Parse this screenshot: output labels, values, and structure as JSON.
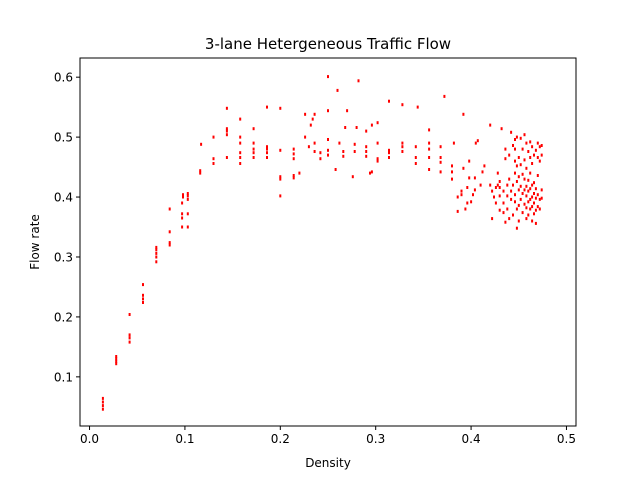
{
  "chart_data": {
    "type": "scatter",
    "title": "3-lane Hetergeneous Traffic Flow",
    "xlabel": "Density",
    "ylabel": "Flow rate",
    "xlim": [
      -0.01,
      0.51
    ],
    "ylim": [
      0.018,
      0.632
    ],
    "xticks": [
      0.0,
      0.1,
      0.2,
      0.3,
      0.4,
      0.5
    ],
    "xtick_labels": [
      "0.0",
      "0.1",
      "0.2",
      "0.3",
      "0.4",
      "0.5"
    ],
    "yticks": [
      0.1,
      0.2,
      0.3,
      0.4,
      0.5,
      0.6
    ],
    "ytick_labels": [
      "0.1",
      "0.2",
      "0.3",
      "0.4",
      "0.5",
      "0.6"
    ],
    "grid": false,
    "marker_color": "#ff0000",
    "series": [
      {
        "points": [
          [
            0.014,
            0.046
          ],
          [
            0.014,
            0.052
          ],
          [
            0.014,
            0.058
          ],
          [
            0.014,
            0.064
          ],
          [
            0.028,
            0.122
          ],
          [
            0.028,
            0.126
          ],
          [
            0.028,
            0.13
          ],
          [
            0.028,
            0.134
          ],
          [
            0.042,
            0.158
          ],
          [
            0.042,
            0.165
          ],
          [
            0.042,
            0.17
          ],
          [
            0.042,
            0.204
          ],
          [
            0.056,
            0.224
          ],
          [
            0.056,
            0.23
          ],
          [
            0.056,
            0.236
          ],
          [
            0.056,
            0.254
          ],
          [
            0.07,
            0.292
          ],
          [
            0.07,
            0.3
          ],
          [
            0.07,
            0.306
          ],
          [
            0.07,
            0.312
          ],
          [
            0.07,
            0.316
          ],
          [
            0.084,
            0.32
          ],
          [
            0.084,
            0.324
          ],
          [
            0.084,
            0.342
          ],
          [
            0.084,
            0.38
          ],
          [
            0.097,
            0.35
          ],
          [
            0.097,
            0.365
          ],
          [
            0.097,
            0.372
          ],
          [
            0.097,
            0.39
          ],
          [
            0.098,
            0.4
          ],
          [
            0.098,
            0.404
          ],
          [
            0.103,
            0.35
          ],
          [
            0.103,
            0.372
          ],
          [
            0.103,
            0.396
          ],
          [
            0.103,
            0.402
          ],
          [
            0.103,
            0.406
          ],
          [
            0.116,
            0.44
          ],
          [
            0.116,
            0.444
          ],
          [
            0.117,
            0.488
          ],
          [
            0.13,
            0.456
          ],
          [
            0.13,
            0.464
          ],
          [
            0.13,
            0.5
          ],
          [
            0.144,
            0.466
          ],
          [
            0.144,
            0.504
          ],
          [
            0.144,
            0.51
          ],
          [
            0.144,
            0.514
          ],
          [
            0.144,
            0.548
          ],
          [
            0.158,
            0.456
          ],
          [
            0.158,
            0.466
          ],
          [
            0.158,
            0.474
          ],
          [
            0.158,
            0.49
          ],
          [
            0.158,
            0.5
          ],
          [
            0.158,
            0.53
          ],
          [
            0.172,
            0.466
          ],
          [
            0.172,
            0.474
          ],
          [
            0.172,
            0.48
          ],
          [
            0.172,
            0.49
          ],
          [
            0.172,
            0.514
          ],
          [
            0.186,
            0.466
          ],
          [
            0.186,
            0.474
          ],
          [
            0.186,
            0.48
          ],
          [
            0.186,
            0.484
          ],
          [
            0.186,
            0.55
          ],
          [
            0.2,
            0.402
          ],
          [
            0.2,
            0.43
          ],
          [
            0.2,
            0.434
          ],
          [
            0.2,
            0.478
          ],
          [
            0.2,
            0.548
          ],
          [
            0.214,
            0.432
          ],
          [
            0.214,
            0.436
          ],
          [
            0.214,
            0.464
          ],
          [
            0.214,
            0.472
          ],
          [
            0.214,
            0.48
          ],
          [
            0.22,
            0.44
          ],
          [
            0.226,
            0.5
          ],
          [
            0.226,
            0.538
          ],
          [
            0.23,
            0.484
          ],
          [
            0.232,
            0.52
          ],
          [
            0.234,
            0.53
          ],
          [
            0.236,
            0.476
          ],
          [
            0.236,
            0.49
          ],
          [
            0.236,
            0.538
          ],
          [
            0.242,
            0.464
          ],
          [
            0.242,
            0.474
          ],
          [
            0.25,
            0.47
          ],
          [
            0.25,
            0.478
          ],
          [
            0.25,
            0.496
          ],
          [
            0.25,
            0.544
          ],
          [
            0.25,
            0.601
          ],
          [
            0.258,
            0.446
          ],
          [
            0.26,
            0.578
          ],
          [
            0.262,
            0.49
          ],
          [
            0.266,
            0.468
          ],
          [
            0.266,
            0.476
          ],
          [
            0.268,
            0.516
          ],
          [
            0.27,
            0.544
          ],
          [
            0.276,
            0.434
          ],
          [
            0.278,
            0.476
          ],
          [
            0.278,
            0.488
          ],
          [
            0.28,
            0.516
          ],
          [
            0.282,
            0.594
          ],
          [
            0.29,
            0.468
          ],
          [
            0.29,
            0.476
          ],
          [
            0.29,
            0.484
          ],
          [
            0.29,
            0.51
          ],
          [
            0.294,
            0.44
          ],
          [
            0.296,
            0.442
          ],
          [
            0.296,
            0.52
          ],
          [
            0.302,
            0.46
          ],
          [
            0.302,
            0.464
          ],
          [
            0.302,
            0.49
          ],
          [
            0.302,
            0.524
          ],
          [
            0.314,
            0.466
          ],
          [
            0.314,
            0.474
          ],
          [
            0.314,
            0.478
          ],
          [
            0.314,
            0.56
          ],
          [
            0.328,
            0.476
          ],
          [
            0.328,
            0.484
          ],
          [
            0.328,
            0.49
          ],
          [
            0.328,
            0.554
          ],
          [
            0.342,
            0.456
          ],
          [
            0.342,
            0.466
          ],
          [
            0.342,
            0.484
          ],
          [
            0.344,
            0.55
          ],
          [
            0.356,
            0.446
          ],
          [
            0.356,
            0.466
          ],
          [
            0.356,
            0.48
          ],
          [
            0.356,
            0.49
          ],
          [
            0.356,
            0.512
          ],
          [
            0.368,
            0.442
          ],
          [
            0.368,
            0.458
          ],
          [
            0.368,
            0.466
          ],
          [
            0.368,
            0.484
          ],
          [
            0.372,
            0.568
          ],
          [
            0.38,
            0.43
          ],
          [
            0.38,
            0.442
          ],
          [
            0.38,
            0.452
          ],
          [
            0.382,
            0.49
          ],
          [
            0.386,
            0.376
          ],
          [
            0.386,
            0.4
          ],
          [
            0.39,
            0.404
          ],
          [
            0.39,
            0.41
          ],
          [
            0.392,
            0.448
          ],
          [
            0.392,
            0.538
          ],
          [
            0.394,
            0.38
          ],
          [
            0.396,
            0.39
          ],
          [
            0.396,
            0.416
          ],
          [
            0.398,
            0.432
          ],
          [
            0.398,
            0.46
          ],
          [
            0.4,
            0.392
          ],
          [
            0.402,
            0.404
          ],
          [
            0.404,
            0.412
          ],
          [
            0.404,
            0.432
          ],
          [
            0.405,
            0.49
          ],
          [
            0.407,
            0.494
          ],
          [
            0.41,
            0.42
          ],
          [
            0.412,
            0.442
          ],
          [
            0.414,
            0.452
          ],
          [
            0.42,
            0.42
          ],
          [
            0.42,
            0.52
          ],
          [
            0.422,
            0.364
          ],
          [
            0.422,
            0.41
          ],
          [
            0.424,
            0.4
          ],
          [
            0.426,
            0.39
          ],
          [
            0.426,
            0.416
          ],
          [
            0.428,
            0.42
          ],
          [
            0.428,
            0.44
          ],
          [
            0.43,
            0.378
          ],
          [
            0.43,
            0.402
          ],
          [
            0.43,
            0.416
          ],
          [
            0.43,
            0.426
          ],
          [
            0.432,
            0.514
          ],
          [
            0.434,
            0.374
          ],
          [
            0.434,
            0.39
          ],
          [
            0.434,
            0.41
          ],
          [
            0.436,
            0.358
          ],
          [
            0.436,
            0.464
          ],
          [
            0.436,
            0.48
          ],
          [
            0.438,
            0.38
          ],
          [
            0.438,
            0.402
          ],
          [
            0.438,
            0.42
          ],
          [
            0.44,
            0.364
          ],
          [
            0.44,
            0.43
          ],
          [
            0.44,
            0.47
          ],
          [
            0.442,
            0.396
          ],
          [
            0.442,
            0.41
          ],
          [
            0.442,
            0.508
          ],
          [
            0.444,
            0.37
          ],
          [
            0.444,
            0.42
          ],
          [
            0.444,
            0.486
          ],
          [
            0.446,
            0.392
          ],
          [
            0.446,
            0.404
          ],
          [
            0.446,
            0.44
          ],
          [
            0.446,
            0.46
          ],
          [
            0.446,
            0.48
          ],
          [
            0.446,
            0.496
          ],
          [
            0.448,
            0.348
          ],
          [
            0.448,
            0.38
          ],
          [
            0.448,
            0.426
          ],
          [
            0.448,
            0.452
          ],
          [
            0.448,
            0.5
          ],
          [
            0.45,
            0.36
          ],
          [
            0.45,
            0.386
          ],
          [
            0.45,
            0.412
          ],
          [
            0.45,
            0.434
          ],
          [
            0.45,
            0.466
          ],
          [
            0.452,
            0.396
          ],
          [
            0.452,
            0.418
          ],
          [
            0.452,
            0.454
          ],
          [
            0.452,
            0.498
          ],
          [
            0.454,
            0.374
          ],
          [
            0.454,
            0.406
          ],
          [
            0.454,
            0.438
          ],
          [
            0.454,
            0.48
          ],
          [
            0.456,
            0.388
          ],
          [
            0.456,
            0.412
          ],
          [
            0.456,
            0.43
          ],
          [
            0.456,
            0.462
          ],
          [
            0.456,
            0.504
          ],
          [
            0.458,
            0.364
          ],
          [
            0.458,
            0.382
          ],
          [
            0.458,
            0.402
          ],
          [
            0.458,
            0.418
          ],
          [
            0.458,
            0.448
          ],
          [
            0.458,
            0.49
          ],
          [
            0.46,
            0.37
          ],
          [
            0.46,
            0.392
          ],
          [
            0.46,
            0.41
          ],
          [
            0.46,
            0.428
          ],
          [
            0.46,
            0.476
          ],
          [
            0.462,
            0.38
          ],
          [
            0.462,
            0.396
          ],
          [
            0.462,
            0.414
          ],
          [
            0.462,
            0.44
          ],
          [
            0.462,
            0.466
          ],
          [
            0.462,
            0.492
          ],
          [
            0.464,
            0.36
          ],
          [
            0.464,
            0.384
          ],
          [
            0.464,
            0.4
          ],
          [
            0.464,
            0.42
          ],
          [
            0.464,
            0.456
          ],
          [
            0.464,
            0.484
          ],
          [
            0.466,
            0.372
          ],
          [
            0.466,
            0.39
          ],
          [
            0.466,
            0.406
          ],
          [
            0.466,
            0.424
          ],
          [
            0.466,
            0.47
          ],
          [
            0.468,
            0.356
          ],
          [
            0.468,
            0.378
          ],
          [
            0.468,
            0.398
          ],
          [
            0.468,
            0.414
          ],
          [
            0.468,
            0.478
          ],
          [
            0.47,
            0.384
          ],
          [
            0.47,
            0.404
          ],
          [
            0.47,
            0.436
          ],
          [
            0.47,
            0.466
          ],
          [
            0.47,
            0.49
          ],
          [
            0.472,
            0.38
          ],
          [
            0.472,
            0.396
          ],
          [
            0.472,
            0.46
          ],
          [
            0.472,
            0.484
          ],
          [
            0.474,
            0.398
          ],
          [
            0.474,
            0.412
          ],
          [
            0.474,
            0.47
          ],
          [
            0.474,
            0.486
          ]
        ]
      }
    ]
  }
}
